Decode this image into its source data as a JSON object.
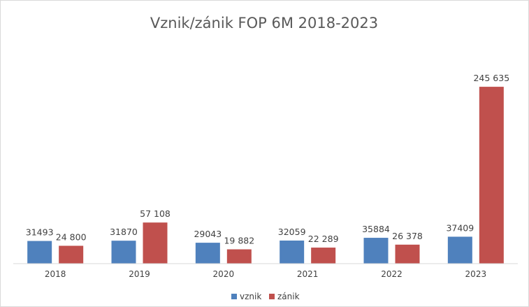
{
  "chart_data": {
    "type": "bar",
    "title": "Vznik/zánik FOP 6M 2018-2023",
    "xlabel": "",
    "ylabel": "",
    "categories": [
      "2018",
      "2019",
      "2020",
      "2021",
      "2022",
      "2023"
    ],
    "series": [
      {
        "name": "vznik",
        "color": "#4f81bd",
        "values": [
          31493,
          31870,
          29043,
          32059,
          35884,
          37409
        ],
        "labels": [
          "31493",
          "31870",
          "29043",
          "32059",
          "35884",
          "37409"
        ]
      },
      {
        "name": "zánik",
        "color": "#c0504d",
        "values": [
          24800,
          57108,
          19882,
          22289,
          26378,
          245635
        ],
        "labels": [
          "24 800",
          "57 108",
          "19 882",
          "22 289",
          "26 378",
          "245 635"
        ]
      }
    ],
    "ylim": [
      0,
      270000
    ],
    "grid": false,
    "y_axis_visible": false,
    "legend_position": "bottom"
  }
}
